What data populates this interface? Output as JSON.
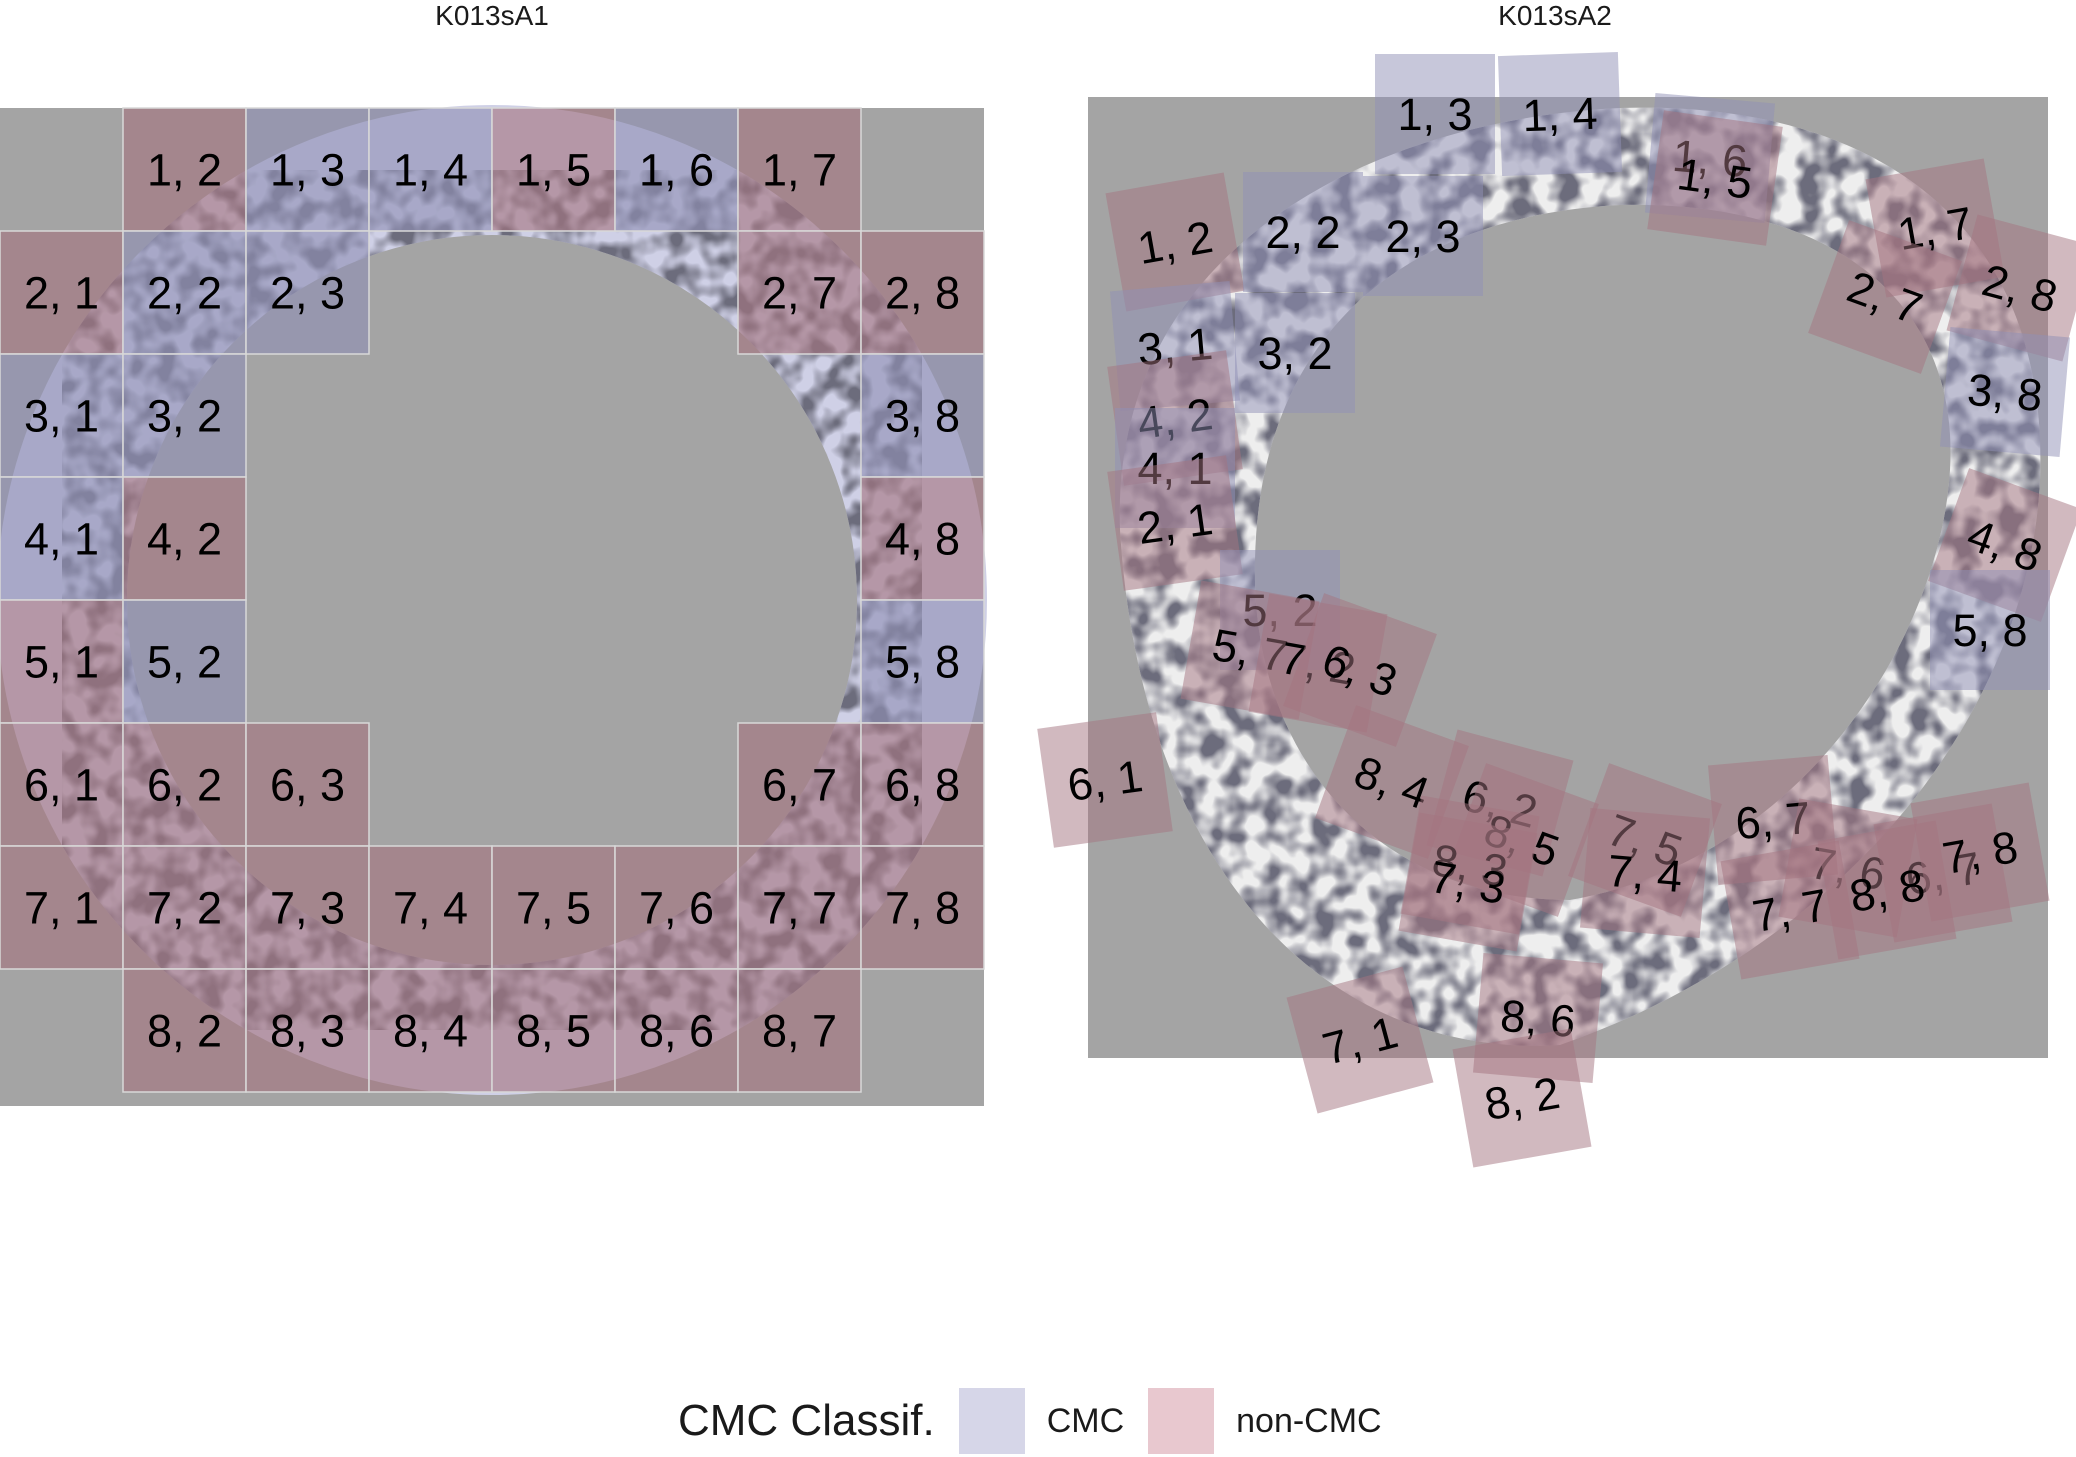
{
  "colors": {
    "panel_background": "#a4a4a4",
    "cmc": "#8f8fb5",
    "non_cmc": "#a4747f",
    "cmc_legend": "#d6d6e8",
    "non_cmc_legend": "#e8c8cf",
    "scan_light_left": "#cfd0e6",
    "scan_light_right": "#eeeeee"
  },
  "panels": [
    {
      "title": "K013sA1",
      "cells": [
        {
          "label": "1, 2",
          "class": "non-CMC"
        },
        {
          "label": "1, 3",
          "class": "CMC"
        },
        {
          "label": "1, 4",
          "class": "CMC"
        },
        {
          "label": "1, 5",
          "class": "non-CMC"
        },
        {
          "label": "1, 6",
          "class": "CMC"
        },
        {
          "label": "1, 7",
          "class": "non-CMC"
        },
        {
          "label": "2, 1",
          "class": "non-CMC"
        },
        {
          "label": "2, 2",
          "class": "CMC"
        },
        {
          "label": "2, 3",
          "class": "CMC"
        },
        {
          "label": "2, 7",
          "class": "non-CMC"
        },
        {
          "label": "2, 8",
          "class": "non-CMC"
        },
        {
          "label": "3, 1",
          "class": "CMC"
        },
        {
          "label": "3, 2",
          "class": "CMC"
        },
        {
          "label": "3, 8",
          "class": "CMC"
        },
        {
          "label": "4, 1",
          "class": "CMC"
        },
        {
          "label": "4, 2",
          "class": "non-CMC"
        },
        {
          "label": "4, 8",
          "class": "non-CMC"
        },
        {
          "label": "5, 1",
          "class": "non-CMC"
        },
        {
          "label": "5, 2",
          "class": "CMC"
        },
        {
          "label": "5, 8",
          "class": "CMC"
        },
        {
          "label": "6, 1",
          "class": "non-CMC"
        },
        {
          "label": "6, 2",
          "class": "non-CMC"
        },
        {
          "label": "6, 3",
          "class": "non-CMC"
        },
        {
          "label": "6, 7",
          "class": "non-CMC"
        },
        {
          "label": "6, 8",
          "class": "non-CMC"
        },
        {
          "label": "7, 1",
          "class": "non-CMC"
        },
        {
          "label": "7, 2",
          "class": "non-CMC"
        },
        {
          "label": "7, 3",
          "class": "non-CMC"
        },
        {
          "label": "7, 4",
          "class": "non-CMC"
        },
        {
          "label": "7, 5",
          "class": "non-CMC"
        },
        {
          "label": "7, 6",
          "class": "non-CMC"
        },
        {
          "label": "7, 7",
          "class": "non-CMC"
        },
        {
          "label": "7, 8",
          "class": "non-CMC"
        },
        {
          "label": "8, 2",
          "class": "non-CMC"
        },
        {
          "label": "8, 3",
          "class": "non-CMC"
        },
        {
          "label": "8, 4",
          "class": "non-CMC"
        },
        {
          "label": "8, 5",
          "class": "non-CMC"
        },
        {
          "label": "8, 6",
          "class": "non-CMC"
        },
        {
          "label": "8, 7",
          "class": "non-CMC"
        }
      ]
    },
    {
      "title": "K013sA2",
      "cells": [
        {
          "label": "1, 3",
          "class": "CMC"
        },
        {
          "label": "1, 4",
          "class": "CMC"
        },
        {
          "label": "1, 6",
          "class": "CMC"
        },
        {
          "label": "1, 5",
          "class": "non-CMC"
        },
        {
          "label": "1, 2",
          "class": "non-CMC"
        },
        {
          "label": "2, 2",
          "class": "CMC"
        },
        {
          "label": "2, 3",
          "class": "CMC"
        },
        {
          "label": "1, 7",
          "class": "non-CMC"
        },
        {
          "label": "2, 8",
          "class": "non-CMC"
        },
        {
          "label": "2, 7",
          "class": "non-CMC"
        },
        {
          "label": "3, 1",
          "class": "CMC"
        },
        {
          "label": "3, 2",
          "class": "CMC"
        },
        {
          "label": "3, 8",
          "class": "CMC"
        },
        {
          "label": "4, 2",
          "class": "non-CMC"
        },
        {
          "label": "4, 1",
          "class": "CMC"
        },
        {
          "label": "2, 1",
          "class": "non-CMC"
        },
        {
          "label": "4, 8",
          "class": "non-CMC"
        },
        {
          "label": "5, 2",
          "class": "CMC"
        },
        {
          "label": "5, 8",
          "class": "CMC"
        },
        {
          "label": "5, 7",
          "class": "non-CMC"
        },
        {
          "label": "7, 2",
          "class": "non-CMC"
        },
        {
          "label": "6, 3",
          "class": "non-CMC"
        },
        {
          "label": "6, 1",
          "class": "non-CMC"
        },
        {
          "label": "8, 4",
          "class": "non-CMC"
        },
        {
          "label": "6, 2",
          "class": "non-CMC"
        },
        {
          "label": "8, 5",
          "class": "non-CMC"
        },
        {
          "label": "8, 3",
          "class": "non-CMC"
        },
        {
          "label": "7, 3",
          "class": "non-CMC"
        },
        {
          "label": "7, 5",
          "class": "non-CMC"
        },
        {
          "label": "7, 4",
          "class": "non-CMC"
        },
        {
          "label": "6, 7",
          "class": "non-CMC"
        },
        {
          "label": "7, 6",
          "class": "non-CMC"
        },
        {
          "label": "6, 7",
          "class": "non-CMC"
        },
        {
          "label": "7, 8",
          "class": "non-CMC"
        },
        {
          "label": "8, 8",
          "class": "non-CMC"
        },
        {
          "label": "7, 7",
          "class": "non-CMC"
        },
        {
          "label": "7, 1",
          "class": "non-CMC"
        },
        {
          "label": "8, 6",
          "class": "non-CMC"
        },
        {
          "label": "8, 2",
          "class": "non-CMC"
        }
      ]
    }
  ],
  "legend": {
    "title": "CMC Classif.",
    "items": [
      {
        "label": "CMC",
        "color": "#d6d6e8"
      },
      {
        "label": "non-CMC",
        "color": "#e8c8cf"
      }
    ]
  }
}
